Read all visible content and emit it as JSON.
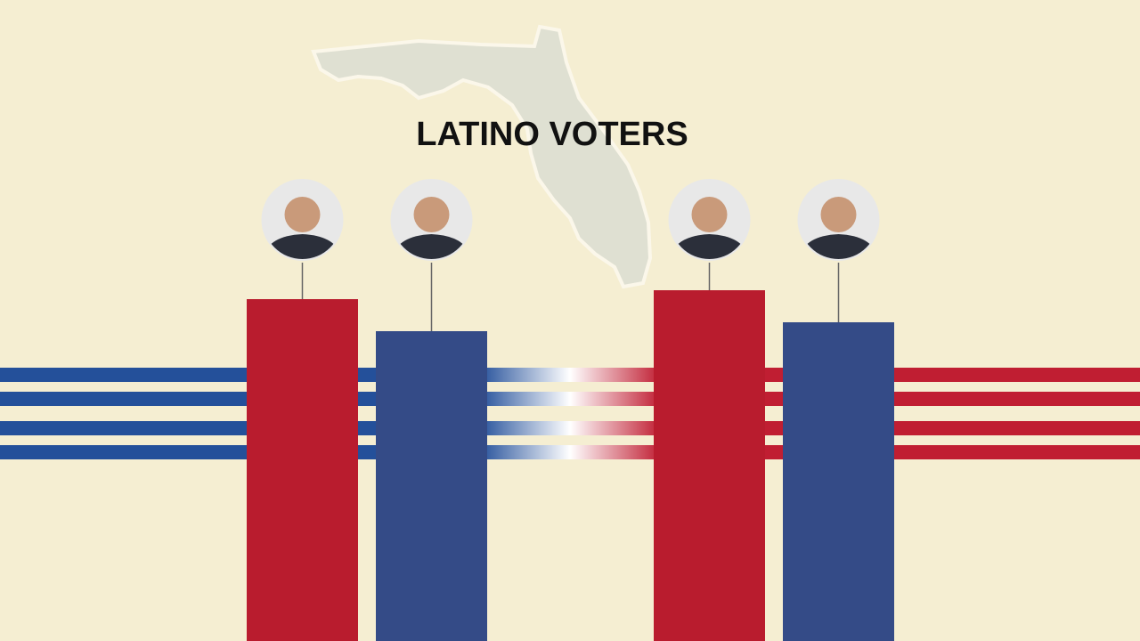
{
  "chart_data": {
    "type": "bar",
    "title": "LATINO VOTERS",
    "categories": [
      null,
      null,
      null,
      null
    ],
    "values": [
      96,
      87,
      98.5,
      89.5
    ],
    "colors": [
      "#b91c2e",
      "#344b87",
      "#b91c2e",
      "#344b87"
    ],
    "ylim": [
      0,
      100
    ]
  }
}
